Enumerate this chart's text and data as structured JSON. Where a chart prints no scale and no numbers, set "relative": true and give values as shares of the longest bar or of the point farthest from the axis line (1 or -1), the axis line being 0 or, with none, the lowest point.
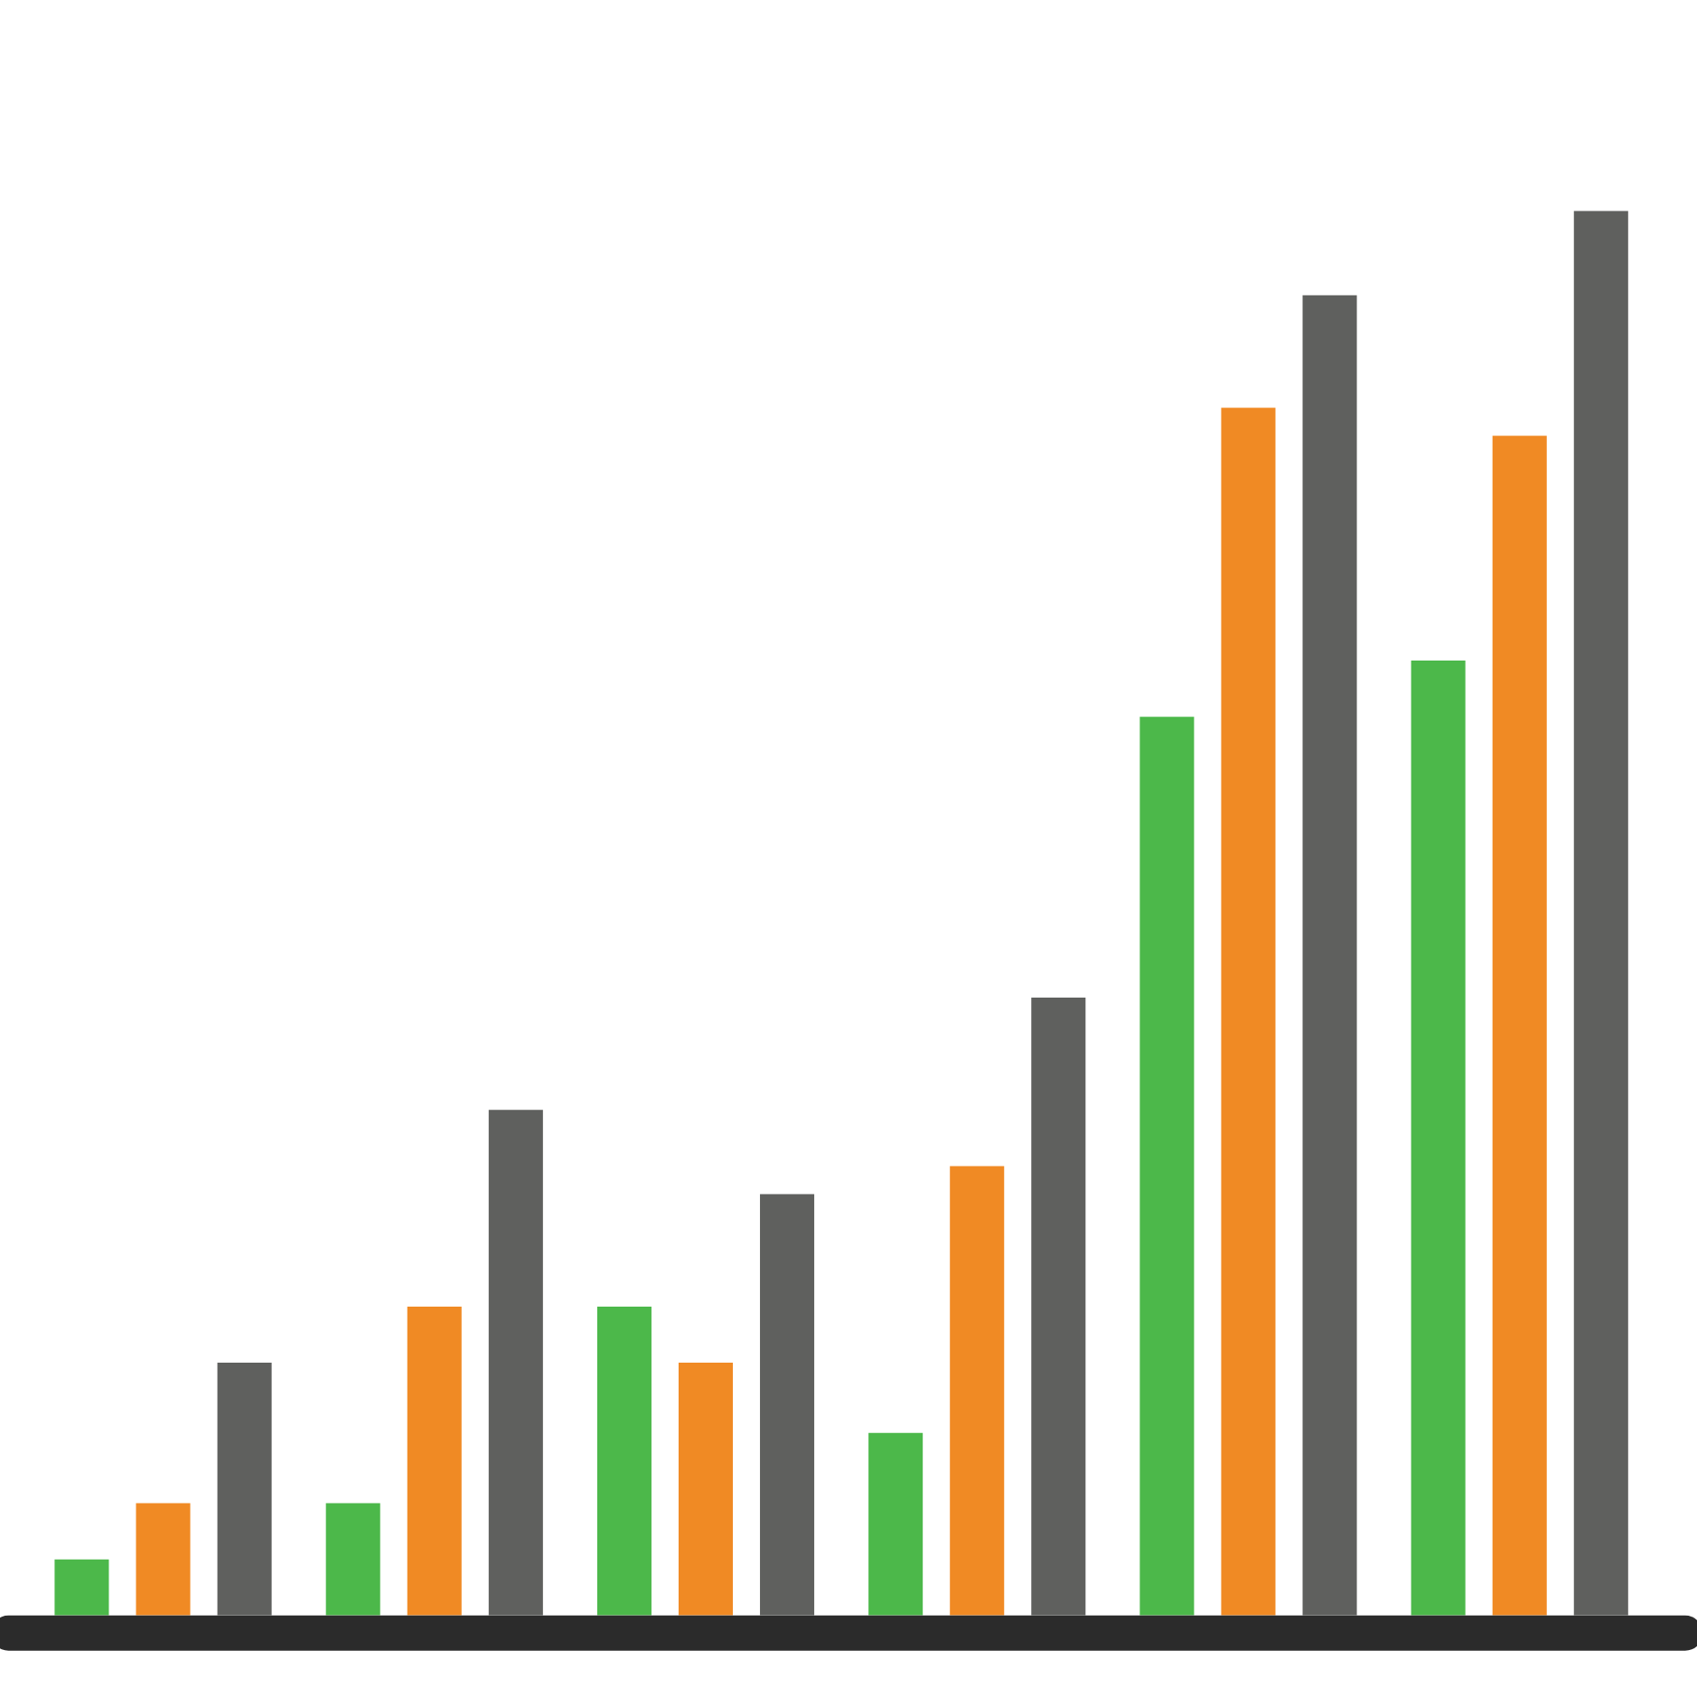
{
  "chart_data": {
    "type": "bar",
    "relative": true,
    "categories": [
      null,
      null,
      null,
      null,
      null,
      null
    ],
    "series": [
      {
        "color": "#4cb84a",
        "values": [
          0.04,
          0.08,
          0.22,
          0.13,
          0.64,
          0.68
        ]
      },
      {
        "color": "#f08a24",
        "values": [
          0.08,
          0.22,
          0.18,
          0.32,
          0.86,
          0.84
        ]
      },
      {
        "color": "#5f605e",
        "values": [
          0.18,
          0.36,
          0.3,
          0.44,
          0.94,
          1
        ]
      }
    ]
  }
}
